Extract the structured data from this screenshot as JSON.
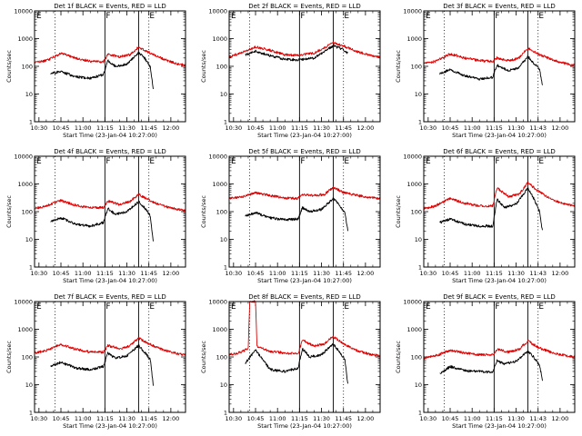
{
  "figure": {
    "ylabel": "Counts/sec",
    "xlabel": "Start Time (23-Jan-04 10:27:00)",
    "y_ticks": [
      "1",
      "10",
      "100",
      "1000",
      "10000"
    ],
    "x_ticks_a": [
      "10:30",
      "10:45",
      "11:00",
      "11:15",
      "11:30",
      "11:45",
      "12:00"
    ],
    "x_ticks_b": [
      "10:30",
      "10:45",
      "11:00",
      "11:15",
      "11:30",
      "11:43",
      "12:00"
    ],
    "flag_labels": [
      "E",
      "F",
      "E"
    ],
    "colors": {
      "events": "#000000",
      "lld": "#dd0000"
    }
  },
  "chart_data": [
    {
      "type": "line",
      "title": "Det 1f BLACK = Events, RED = LLD",
      "xaxis": "a",
      "yscale": "log",
      "ylim": [
        1,
        10000
      ],
      "xlim": [
        "10:27",
        "12:10"
      ],
      "vlines_solid": [
        "11:15",
        "11:38"
      ],
      "vlines_dotted": [
        "10:41",
        "11:45"
      ],
      "series": [
        {
          "name": "Events",
          "color": "#000000",
          "x": [
            "10:38",
            "10:45",
            "10:55",
            "11:05",
            "11:14",
            "11:17",
            "11:22",
            "11:30",
            "11:38",
            "11:42",
            "11:46",
            "11:48"
          ],
          "y": [
            55,
            65,
            42,
            37,
            50,
            160,
            100,
            120,
            320,
            200,
            95,
            15
          ]
        },
        {
          "name": "LLD",
          "color": "#dd0000",
          "x": [
            "10:27",
            "10:35",
            "10:45",
            "10:55",
            "11:05",
            "11:14",
            "11:17",
            "11:25",
            "11:32",
            "11:38",
            "11:45",
            "11:55",
            "12:05",
            "12:10"
          ],
          "y": [
            140,
            160,
            290,
            200,
            150,
            145,
            270,
            220,
            260,
            500,
            320,
            180,
            120,
            110
          ]
        }
      ]
    },
    {
      "type": "line",
      "title": "Det 2f BLACK = Events, RED = LLD",
      "xaxis": "a",
      "yscale": "log",
      "ylim": [
        1,
        10000
      ],
      "xlim": [
        "10:27",
        "12:10"
      ],
      "vlines_solid": [
        "11:15",
        "11:38"
      ],
      "vlines_dotted": [
        "10:41",
        "11:45"
      ],
      "series": [
        {
          "name": "Events",
          "color": "#000000",
          "x": [
            "10:38",
            "10:45",
            "10:55",
            "11:05",
            "11:14",
            "11:25",
            "11:38",
            "11:45",
            "11:48"
          ],
          "y": [
            260,
            350,
            240,
            180,
            170,
            200,
            550,
            400,
            300
          ]
        },
        {
          "name": "LLD",
          "color": "#dd0000",
          "x": [
            "10:27",
            "10:35",
            "10:45",
            "10:55",
            "11:05",
            "11:14",
            "11:25",
            "11:38",
            "11:45",
            "11:55",
            "12:05",
            "12:10"
          ],
          "y": [
            220,
            300,
            500,
            380,
            260,
            250,
            300,
            700,
            550,
            330,
            240,
            220
          ]
        }
      ]
    },
    {
      "type": "line",
      "title": "Det 3f BLACK = Events, RED = LLD",
      "xaxis": "b",
      "yscale": "log",
      "ylim": [
        1,
        10000
      ],
      "xlim": [
        "10:27",
        "12:10"
      ],
      "vlines_solid": [
        "11:15",
        "11:38"
      ],
      "vlines_dotted": [
        "10:41",
        "11:45"
      ],
      "series": [
        {
          "name": "Events",
          "color": "#000000",
          "x": [
            "10:38",
            "10:45",
            "10:55",
            "11:05",
            "11:14",
            "11:17",
            "11:25",
            "11:32",
            "11:38",
            "11:42",
            "11:46",
            "11:48"
          ],
          "y": [
            55,
            75,
            45,
            35,
            40,
            110,
            70,
            90,
            230,
            130,
            80,
            20
          ]
        },
        {
          "name": "LLD",
          "color": "#dd0000",
          "x": [
            "10:27",
            "10:35",
            "10:45",
            "10:55",
            "11:05",
            "11:14",
            "11:17",
            "11:25",
            "11:32",
            "11:38",
            "11:45",
            "11:55",
            "12:05",
            "12:10"
          ],
          "y": [
            130,
            150,
            280,
            200,
            160,
            150,
            200,
            160,
            200,
            450,
            280,
            170,
            120,
            110
          ]
        }
      ]
    },
    {
      "type": "line",
      "title": "Det 4f BLACK = Events, RED = LLD",
      "xaxis": "a",
      "yscale": "log",
      "ylim": [
        1,
        10000
      ],
      "xlim": [
        "10:27",
        "12:10"
      ],
      "vlines_solid": [
        "11:15",
        "11:38"
      ],
      "vlines_dotted": [
        "10:41",
        "11:45"
      ],
      "series": [
        {
          "name": "Events",
          "color": "#000000",
          "x": [
            "10:38",
            "10:45",
            "10:55",
            "11:05",
            "11:14",
            "11:17",
            "11:22",
            "11:30",
            "11:38",
            "11:42",
            "11:46",
            "11:48"
          ],
          "y": [
            45,
            60,
            35,
            30,
            40,
            130,
            80,
            100,
            230,
            140,
            70,
            8
          ]
        },
        {
          "name": "LLD",
          "color": "#dd0000",
          "x": [
            "10:27",
            "10:35",
            "10:45",
            "10:55",
            "11:05",
            "11:14",
            "11:17",
            "11:25",
            "11:32",
            "11:38",
            "11:45",
            "11:55",
            "12:05",
            "12:10"
          ],
          "y": [
            130,
            160,
            250,
            170,
            140,
            140,
            240,
            180,
            230,
            420,
            260,
            160,
            120,
            110
          ]
        }
      ]
    },
    {
      "type": "line",
      "title": "Det 5f BLACK = Events, RED = LLD",
      "xaxis": "a",
      "yscale": "log",
      "ylim": [
        1,
        10000
      ],
      "xlim": [
        "10:27",
        "12:10"
      ],
      "vlines_solid": [
        "11:15",
        "11:38"
      ],
      "vlines_dotted": [
        "10:41",
        "11:45"
      ],
      "series": [
        {
          "name": "Events",
          "color": "#000000",
          "x": [
            "10:38",
            "10:45",
            "10:55",
            "11:05",
            "11:14",
            "11:17",
            "11:22",
            "11:30",
            "11:38",
            "11:42",
            "11:46",
            "11:48"
          ],
          "y": [
            70,
            90,
            60,
            50,
            55,
            140,
            100,
            120,
            300,
            180,
            90,
            20
          ]
        },
        {
          "name": "LLD",
          "color": "#dd0000",
          "x": [
            "10:27",
            "10:35",
            "10:45",
            "10:55",
            "11:05",
            "11:14",
            "11:17",
            "11:25",
            "11:32",
            "11:38",
            "11:45",
            "11:55",
            "12:05",
            "12:10"
          ],
          "y": [
            300,
            330,
            480,
            380,
            310,
            300,
            420,
            380,
            420,
            750,
            500,
            380,
            310,
            300
          ]
        }
      ]
    },
    {
      "type": "line",
      "title": "Det 6f BLACK = Events, RED = LLD",
      "xaxis": "b",
      "yscale": "log",
      "ylim": [
        1,
        10000
      ],
      "xlim": [
        "10:27",
        "12:10"
      ],
      "vlines_solid": [
        "11:15",
        "11:38"
      ],
      "vlines_dotted": [
        "10:41",
        "11:45"
      ],
      "series": [
        {
          "name": "Events",
          "color": "#000000",
          "x": [
            "10:38",
            "10:45",
            "10:55",
            "11:05",
            "11:14",
            "11:17",
            "11:22",
            "11:30",
            "11:38",
            "11:42",
            "11:46",
            "11:48"
          ],
          "y": [
            40,
            55,
            35,
            30,
            30,
            280,
            140,
            190,
            700,
            300,
            100,
            20
          ]
        },
        {
          "name": "LLD",
          "color": "#dd0000",
          "x": [
            "10:27",
            "10:35",
            "10:45",
            "10:55",
            "11:05",
            "11:14",
            "11:17",
            "11:25",
            "11:32",
            "11:38",
            "11:45",
            "11:55",
            "12:05",
            "12:10"
          ],
          "y": [
            130,
            160,
            300,
            200,
            160,
            160,
            700,
            350,
            420,
            1100,
            550,
            260,
            180,
            160
          ]
        }
      ]
    },
    {
      "type": "line",
      "title": "Det 7f BLACK = Events, RED = LLD",
      "xaxis": "a",
      "yscale": "log",
      "ylim": [
        1,
        10000
      ],
      "xlim": [
        "10:27",
        "12:10"
      ],
      "vlines_solid": [
        "11:15",
        "11:38"
      ],
      "vlines_dotted": [
        "10:41",
        "11:45"
      ],
      "series": [
        {
          "name": "Events",
          "color": "#000000",
          "x": [
            "10:38",
            "10:45",
            "10:55",
            "11:05",
            "11:14",
            "11:17",
            "11:22",
            "11:30",
            "11:38",
            "11:42",
            "11:46",
            "11:48"
          ],
          "y": [
            45,
            65,
            40,
            35,
            45,
            140,
            90,
            110,
            260,
            150,
            80,
            10
          ]
        },
        {
          "name": "LLD",
          "color": "#dd0000",
          "x": [
            "10:27",
            "10:35",
            "10:45",
            "10:55",
            "11:05",
            "11:14",
            "11:17",
            "11:25",
            "11:32",
            "11:38",
            "11:45",
            "11:55",
            "12:05",
            "12:10"
          ],
          "y": [
            140,
            170,
            290,
            190,
            150,
            150,
            260,
            200,
            250,
            480,
            300,
            180,
            130,
            120
          ]
        }
      ]
    },
    {
      "type": "line",
      "title": "Det 8f BLACK = Events, RED = LLD",
      "xaxis": "a",
      "yscale": "log",
      "ylim": [
        1,
        10000
      ],
      "xlim": [
        "10:27",
        "12:10"
      ],
      "vlines_solid": [
        "11:15",
        "11:38"
      ],
      "vlines_dotted": [
        "10:41",
        "11:45"
      ],
      "series": [
        {
          "name": "Events",
          "color": "#000000",
          "x": [
            "10:38",
            "10:45",
            "10:55",
            "11:05",
            "11:14",
            "11:17",
            "11:22",
            "11:30",
            "11:38",
            "11:42",
            "11:46",
            "11:48"
          ],
          "y": [
            60,
            180,
            35,
            30,
            40,
            200,
            100,
            120,
            300,
            160,
            80,
            10
          ]
        },
        {
          "name": "LLD",
          "color": "#dd0000",
          "x": [
            "10:27",
            "10:35",
            "10:40",
            "10:41",
            "10:45",
            "10:46",
            "10:50",
            "10:55",
            "11:05",
            "11:14",
            "11:17",
            "11:25",
            "11:32",
            "11:38",
            "11:45",
            "11:55",
            "12:05",
            "12:10"
          ],
          "y": [
            120,
            150,
            200,
            10000,
            10000,
            250,
            200,
            160,
            140,
            130,
            400,
            250,
            300,
            550,
            300,
            160,
            120,
            110
          ]
        }
      ]
    },
    {
      "type": "line",
      "title": "Det 9f BLACK = Events, RED = LLD",
      "xaxis": "b",
      "yscale": "log",
      "ylim": [
        1,
        10000
      ],
      "xlim": [
        "10:27",
        "12:10"
      ],
      "vlines_solid": [
        "11:15",
        "11:38"
      ],
      "vlines_dotted": [
        "10:41",
        "11:45"
      ],
      "series": [
        {
          "name": "Events",
          "color": "#000000",
          "x": [
            "10:38",
            "10:45",
            "10:55",
            "11:05",
            "11:14",
            "11:17",
            "11:22",
            "11:30",
            "11:38",
            "11:42",
            "11:46",
            "11:48"
          ],
          "y": [
            25,
            45,
            32,
            30,
            28,
            75,
            55,
            70,
            160,
            100,
            50,
            15
          ]
        },
        {
          "name": "LLD",
          "color": "#dd0000",
          "x": [
            "10:27",
            "10:35",
            "10:45",
            "10:55",
            "11:05",
            "11:14",
            "11:17",
            "11:25",
            "11:32",
            "11:38",
            "11:45",
            "11:55",
            "12:05",
            "12:10"
          ],
          "y": [
            90,
            110,
            170,
            140,
            120,
            120,
            190,
            150,
            190,
            380,
            220,
            140,
            110,
            100
          ]
        }
      ]
    }
  ]
}
